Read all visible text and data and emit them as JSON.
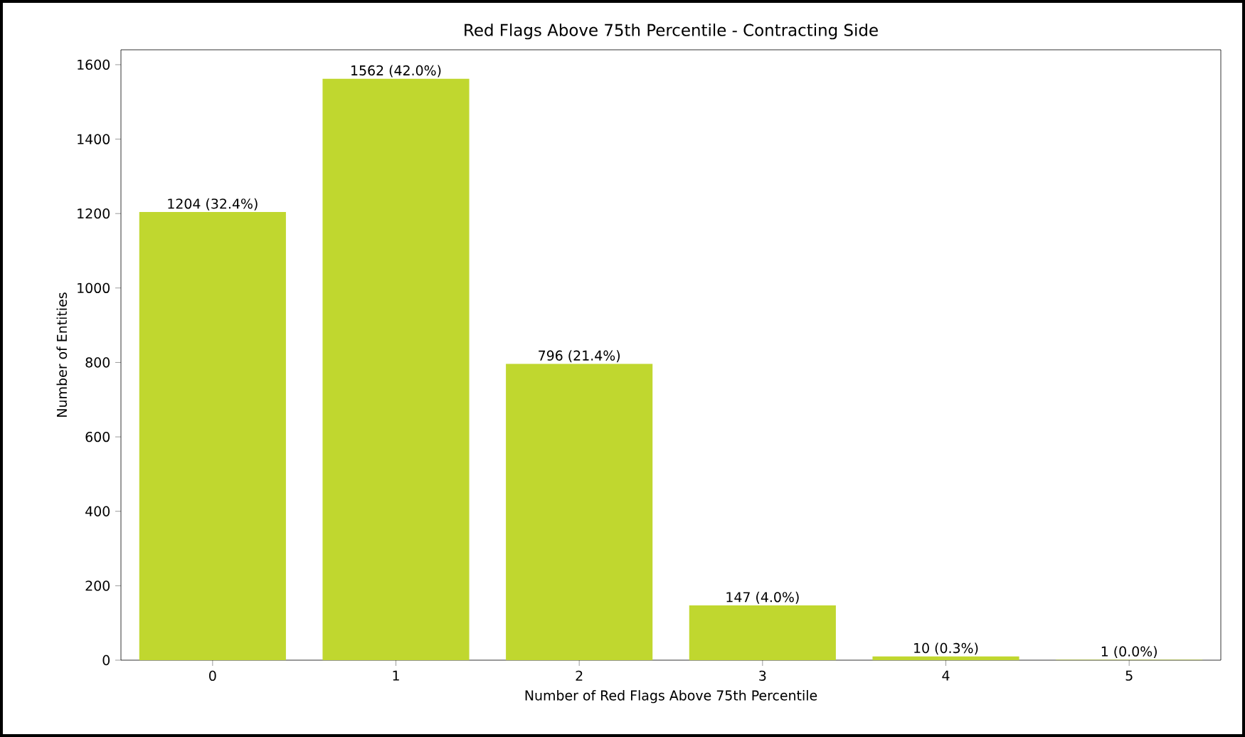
{
  "chart_data": {
    "type": "bar",
    "title": "Red Flags Above 75th Percentile - Contracting Side",
    "xlabel": "Number of Red Flags Above 75th Percentile",
    "ylabel": "Number of Entities",
    "categories": [
      "0",
      "1",
      "2",
      "3",
      "4",
      "5"
    ],
    "values": [
      1204,
      1562,
      796,
      147,
      10,
      1
    ],
    "value_labels": [
      "1204 (32.4%)",
      "1562 (42.0%)",
      "796 (21.4%)",
      "147 (4.0%)",
      "10 (0.3%)",
      "1 (0.0%)"
    ],
    "color": "#c0d72f",
    "ylim": [
      0,
      1640
    ],
    "yticks": [
      0,
      200,
      400,
      600,
      800,
      1000,
      1200,
      1400,
      1600
    ],
    "grid": false
  }
}
